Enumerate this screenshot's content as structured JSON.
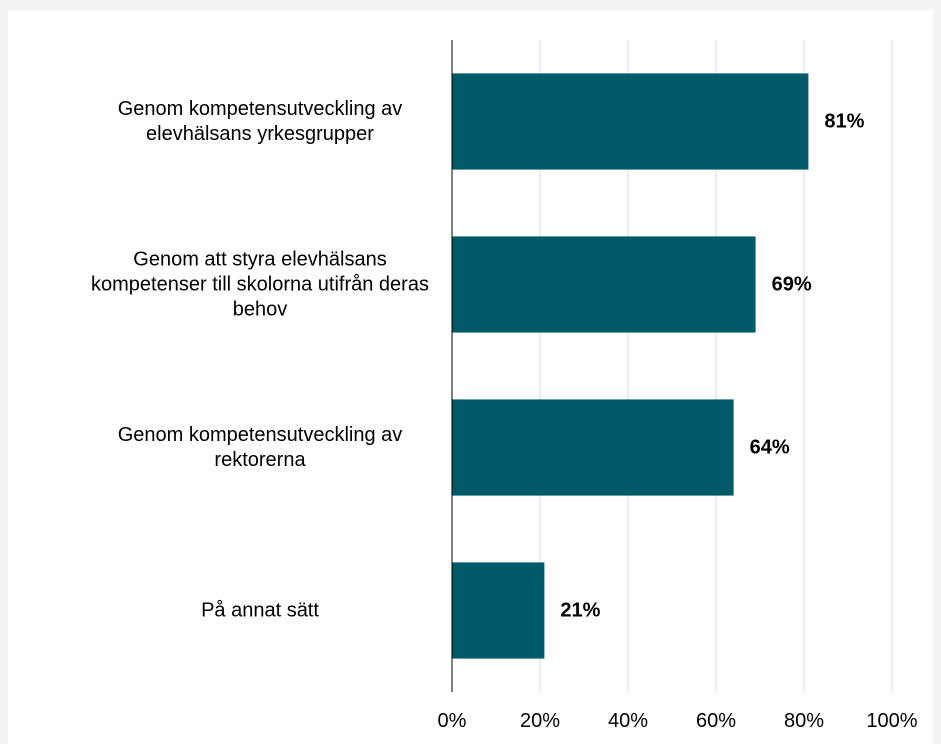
{
  "chart_data": {
    "type": "bar",
    "orientation": "horizontal",
    "categories": [
      "Genom kompetensutveckling av elevhälsans yrkesgrupper",
      "Genom att styra elevhälsans kompetenser till skolorna utifrån deras behov",
      "Genom kompetensutveckling av rektorerna",
      "På annat sätt"
    ],
    "values": [
      81,
      69,
      64,
      21
    ],
    "value_labels": [
      "81%",
      "69%",
      "64%",
      "21%"
    ],
    "color": "#005a68",
    "xlim": [
      0,
      100
    ],
    "xticks": [
      {
        "value": 0,
        "label": "0%"
      },
      {
        "value": 20,
        "label": "20%"
      },
      {
        "value": 40,
        "label": "40%"
      },
      {
        "value": 60,
        "label": "60%"
      },
      {
        "value": 80,
        "label": "80%"
      },
      {
        "value": 100,
        "label": "100%"
      }
    ],
    "grid": true
  }
}
